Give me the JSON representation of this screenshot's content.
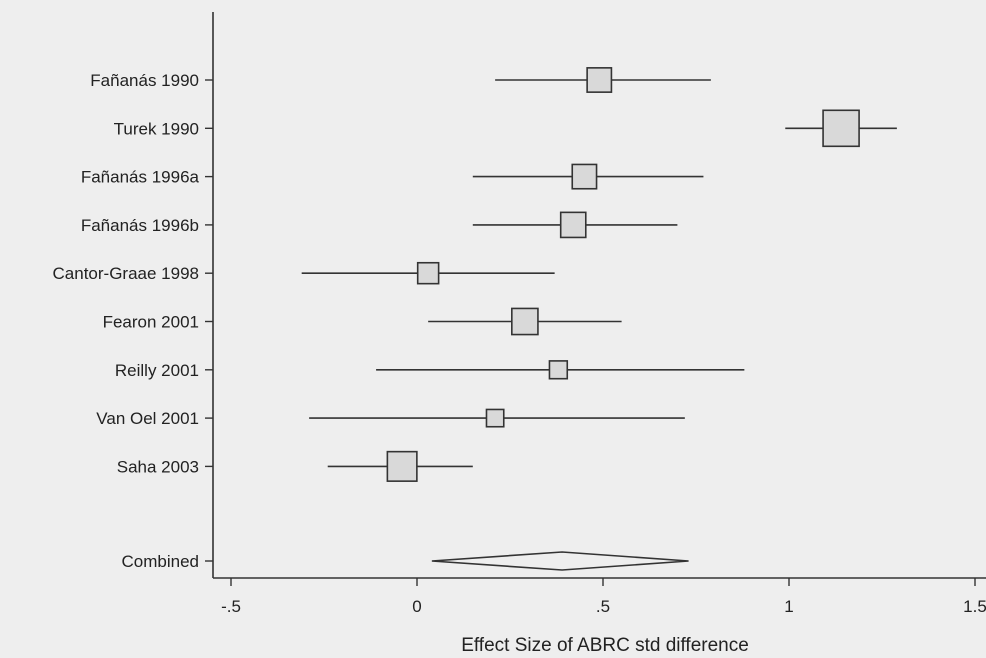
{
  "chart_data": {
    "type": "forest",
    "title": "",
    "xlabel": "Effect Size of ABRC std difference",
    "xlim": [
      -0.55,
      1.55
    ],
    "x_ticks": [
      -0.5,
      0,
      0.5,
      1,
      1.5
    ],
    "x_tick_labels": [
      "-.5",
      "0",
      ".5",
      "1",
      "1.5"
    ],
    "grid": false,
    "legend": "none",
    "studies": [
      {
        "label": "Fañanás 1990",
        "estimate": 0.49,
        "ci_low": 0.21,
        "ci_high": 0.79,
        "weight": 0.55
      },
      {
        "label": "Turek 1990",
        "estimate": 1.14,
        "ci_low": 0.99,
        "ci_high": 1.29,
        "weight": 1.0
      },
      {
        "label": "Fañanás 1996a",
        "estimate": 0.45,
        "ci_low": 0.15,
        "ci_high": 0.77,
        "weight": 0.55
      },
      {
        "label": "Fañanás 1996b",
        "estimate": 0.42,
        "ci_low": 0.15,
        "ci_high": 0.7,
        "weight": 0.58
      },
      {
        "label": "Cantor-Graae 1998",
        "estimate": 0.03,
        "ci_low": -0.31,
        "ci_high": 0.37,
        "weight": 0.42
      },
      {
        "label": "Fearon 2001",
        "estimate": 0.29,
        "ci_low": 0.03,
        "ci_high": 0.55,
        "weight": 0.62
      },
      {
        "label": "Reilly 2001",
        "estimate": 0.38,
        "ci_low": -0.11,
        "ci_high": 0.88,
        "weight": 0.3
      },
      {
        "label": "Van Oel 2001",
        "estimate": 0.21,
        "ci_low": -0.29,
        "ci_high": 0.72,
        "weight": 0.28
      },
      {
        "label": "Saha 2003",
        "estimate": -0.04,
        "ci_low": -0.24,
        "ci_high": 0.15,
        "weight": 0.75
      }
    ],
    "combined": {
      "label": "Combined",
      "estimate": 0.39,
      "ci_low": 0.04,
      "ci_high": 0.73
    }
  }
}
